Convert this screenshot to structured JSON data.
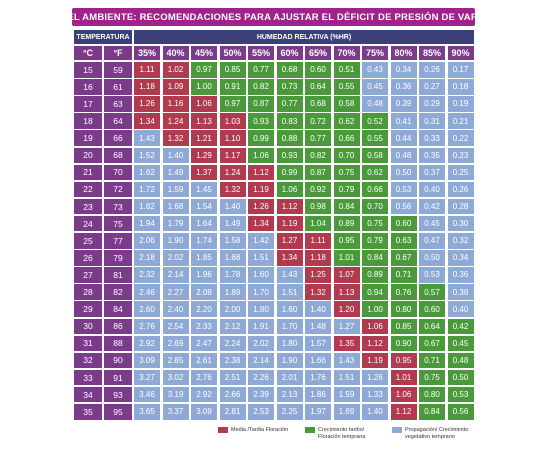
{
  "colors": {
    "title_bg": "#a1228b",
    "header_bg": "#3b3f7a",
    "label_bg": "#7b3a8a",
    "red": "#b03a4e",
    "green": "#4a9a3c",
    "blue": "#8fa9d7"
  },
  "title": "DPV EN EL AMBIENTE: RECOMENDACIONES PARA AJUSTAR EL DÉFICIT DE PRESIÓN DE VAPOR (kPa)",
  "header_temp": "TEMPERATURA",
  "header_humidity": "HUMEDAD RELATIVA (%HR)",
  "unit_c": "°C",
  "unit_f": "°F",
  "legend": [
    {
      "label": "Media /Tardia Floración",
      "color": "#b03a4e"
    },
    {
      "label": "Crecimiento tardio/\nFloración temprana",
      "color": "#4a9a3c"
    },
    {
      "label": "Propagación/ Crecimiento\nvegetativo temprano",
      "color": "#8fa9d7"
    }
  ],
  "chart_data": {
    "type": "table",
    "title": "DPV EN EL AMBIENTE: RECOMENDACIONES PARA AJUSTAR EL DÉFICIT DE PRESIÓN DE VAPOR (kPa)",
    "columns": [
      "35%",
      "40%",
      "45%",
      "50%",
      "55%",
      "60%",
      "65%",
      "70%",
      "75%",
      "80%",
      "85%",
      "90%"
    ],
    "rows": [
      {
        "c": "15",
        "f": "59",
        "values": [
          "1.11",
          "1.02",
          "0.97",
          "0.85",
          "0.77",
          "0.68",
          "0.60",
          "0.51",
          "0.43",
          "0.34",
          "0.26",
          "0.17"
        ],
        "zones": [
          "r",
          "r",
          "g",
          "g",
          "g",
          "g",
          "g",
          "g",
          "b",
          "b",
          "b",
          "b"
        ]
      },
      {
        "c": "16",
        "f": "61",
        "values": [
          "1.18",
          "1.09",
          "1.00",
          "0.91",
          "0.82",
          "0.73",
          "0.64",
          "0.55",
          "0.45",
          "0.36",
          "0.27",
          "0.18"
        ],
        "zones": [
          "r",
          "r",
          "g",
          "g",
          "g",
          "g",
          "g",
          "g",
          "b",
          "b",
          "b",
          "b"
        ]
      },
      {
        "c": "17",
        "f": "63",
        "values": [
          "1.26",
          "1.16",
          "1.06",
          "0.97",
          "0.87",
          "0.77",
          "0.68",
          "0.58",
          "0.48",
          "0.39",
          "0.29",
          "0.19"
        ],
        "zones": [
          "r",
          "r",
          "r",
          "g",
          "g",
          "g",
          "g",
          "g",
          "b",
          "b",
          "b",
          "b"
        ]
      },
      {
        "c": "18",
        "f": "64",
        "values": [
          "1.34",
          "1.24",
          "1.13",
          "1.03",
          "0.93",
          "0.83",
          "0.72",
          "0.62",
          "0.52",
          "0.41",
          "0.31",
          "0.21"
        ],
        "zones": [
          "r",
          "r",
          "r",
          "r",
          "g",
          "g",
          "g",
          "g",
          "g",
          "b",
          "b",
          "b"
        ]
      },
      {
        "c": "19",
        "f": "66",
        "values": [
          "1.43",
          "1.32",
          "1.21",
          "1.10",
          "0.99",
          "0.88",
          "0.77",
          "0.66",
          "0.55",
          "0.44",
          "0.33",
          "0.22"
        ],
        "zones": [
          "b",
          "r",
          "r",
          "r",
          "g",
          "g",
          "g",
          "g",
          "g",
          "b",
          "b",
          "b"
        ]
      },
      {
        "c": "20",
        "f": "68",
        "values": [
          "1.52",
          "1.40",
          "1.29",
          "1.17",
          "1.06",
          "0.93",
          "0.82",
          "0.70",
          "0.58",
          "0.48",
          "0.35",
          "0.23"
        ],
        "zones": [
          "b",
          "b",
          "r",
          "r",
          "g",
          "g",
          "g",
          "g",
          "g",
          "b",
          "b",
          "b"
        ]
      },
      {
        "c": "21",
        "f": "70",
        "values": [
          "1.62",
          "1.49",
          "1.37",
          "1.24",
          "1.12",
          "0.99",
          "0.87",
          "0.75",
          "0.62",
          "0.50",
          "0.37",
          "0.25"
        ],
        "zones": [
          "b",
          "b",
          "r",
          "r",
          "r",
          "g",
          "g",
          "g",
          "g",
          "b",
          "b",
          "b"
        ]
      },
      {
        "c": "22",
        "f": "72",
        "values": [
          "1.72",
          "1.59",
          "1.45",
          "1.32",
          "1.19",
          "1.06",
          "0.92",
          "0.79",
          "0.66",
          "0.53",
          "0.40",
          "0.26"
        ],
        "zones": [
          "b",
          "b",
          "b",
          "r",
          "r",
          "g",
          "g",
          "g",
          "g",
          "b",
          "b",
          "b"
        ]
      },
      {
        "c": "23",
        "f": "73",
        "values": [
          "1.82",
          "1.68",
          "1.54",
          "1.40",
          "1.26",
          "1.12",
          "0.98",
          "0.84",
          "0.70",
          "0.56",
          "0.42",
          "0.28"
        ],
        "zones": [
          "b",
          "b",
          "b",
          "b",
          "r",
          "r",
          "g",
          "g",
          "g",
          "b",
          "b",
          "b"
        ]
      },
      {
        "c": "24",
        "f": "75",
        "values": [
          "1.94",
          "1.79",
          "1.64",
          "1.49",
          "1.34",
          "1.19",
          "1.04",
          "0.89",
          "0.75",
          "0.60",
          "0.45",
          "0.30"
        ],
        "zones": [
          "b",
          "b",
          "b",
          "b",
          "r",
          "r",
          "g",
          "g",
          "g",
          "g",
          "b",
          "b"
        ]
      },
      {
        "c": "25",
        "f": "77",
        "values": [
          "2.06",
          "1.90",
          "1.74",
          "1.58",
          "1.42",
          "1.27",
          "1.11",
          "0.95",
          "0.79",
          "0.63",
          "0.47",
          "0.32"
        ],
        "zones": [
          "b",
          "b",
          "b",
          "b",
          "b",
          "r",
          "r",
          "g",
          "g",
          "g",
          "b",
          "b"
        ]
      },
      {
        "c": "26",
        "f": "79",
        "values": [
          "2.18",
          "2.02",
          "1.85",
          "1.68",
          "1.51",
          "1.34",
          "1.18",
          "1.01",
          "0.84",
          "0.67",
          "0.50",
          "0.34"
        ],
        "zones": [
          "b",
          "b",
          "b",
          "b",
          "b",
          "r",
          "r",
          "g",
          "g",
          "g",
          "b",
          "b"
        ]
      },
      {
        "c": "27",
        "f": "81",
        "values": [
          "2.32",
          "2.14",
          "1.96",
          "1.78",
          "1.60",
          "1.43",
          "1.25",
          "1.07",
          "0.89",
          "0.71",
          "0.53",
          "0.36"
        ],
        "zones": [
          "b",
          "b",
          "b",
          "b",
          "b",
          "b",
          "r",
          "r",
          "g",
          "g",
          "b",
          "b"
        ]
      },
      {
        "c": "28",
        "f": "82",
        "values": [
          "2.46",
          "2.27",
          "2.08",
          "1.89",
          "1.70",
          "1.51",
          "1.32",
          "1.13",
          "0.94",
          "0.76",
          "0.57",
          "0.38"
        ],
        "zones": [
          "b",
          "b",
          "b",
          "b",
          "b",
          "b",
          "r",
          "r",
          "g",
          "g",
          "g",
          "b"
        ]
      },
      {
        "c": "29",
        "f": "84",
        "values": [
          "2.60",
          "2.40",
          "2.20",
          "2.00",
          "1.80",
          "1.60",
          "1.40",
          "1.20",
          "1.00",
          "0.80",
          "0.60",
          "0.40"
        ],
        "zones": [
          "b",
          "b",
          "b",
          "b",
          "b",
          "b",
          "b",
          "r",
          "g",
          "g",
          "g",
          "b"
        ]
      },
      {
        "c": "30",
        "f": "86",
        "values": [
          "2.76",
          "2.54",
          "2.33",
          "2.12",
          "1.91",
          "1.70",
          "1.48",
          "1.27",
          "1.06",
          "0.85",
          "0.64",
          "0.42"
        ],
        "zones": [
          "b",
          "b",
          "b",
          "b",
          "b",
          "b",
          "b",
          "b",
          "r",
          "g",
          "g",
          "g"
        ]
      },
      {
        "c": "31",
        "f": "88",
        "values": [
          "2.92",
          "2.69",
          "2.47",
          "2.24",
          "2.02",
          "1.80",
          "1.57",
          "1.35",
          "1.12",
          "0.90",
          "0.67",
          "0.45"
        ],
        "zones": [
          "b",
          "b",
          "b",
          "b",
          "b",
          "b",
          "b",
          "r",
          "r",
          "g",
          "g",
          "g"
        ]
      },
      {
        "c": "32",
        "f": "90",
        "values": [
          "3.09",
          "2.85",
          "2.61",
          "2.38",
          "2.14",
          "1.90",
          "1.66",
          "1.43",
          "1.19",
          "0.95",
          "0.71",
          "0.48"
        ],
        "zones": [
          "b",
          "b",
          "b",
          "b",
          "b",
          "b",
          "b",
          "b",
          "r",
          "r",
          "g",
          "g"
        ]
      },
      {
        "c": "33",
        "f": "91",
        "values": [
          "3.27",
          "3.02",
          "2.76",
          "2.51",
          "2.26",
          "2.01",
          "1.76",
          "1.51",
          "1.26",
          "1.01",
          "0.75",
          "0.50"
        ],
        "zones": [
          "b",
          "b",
          "b",
          "b",
          "b",
          "b",
          "b",
          "b",
          "b",
          "r",
          "g",
          "g"
        ]
      },
      {
        "c": "34",
        "f": "93",
        "values": [
          "3.46",
          "3.19",
          "2.92",
          "2.66",
          "2.39",
          "2.13",
          "1.86",
          "1.59",
          "1.33",
          "1.06",
          "0.80",
          "0.53"
        ],
        "zones": [
          "b",
          "b",
          "b",
          "b",
          "b",
          "b",
          "b",
          "b",
          "b",
          "r",
          "g",
          "g"
        ]
      },
      {
        "c": "35",
        "f": "95",
        "values": [
          "3.65",
          "3.37",
          "3.09",
          "2.81",
          "2.53",
          "2.25",
          "1.97",
          "1.69",
          "1.40",
          "1.12",
          "0.84",
          "0.56"
        ],
        "zones": [
          "b",
          "b",
          "b",
          "b",
          "b",
          "b",
          "b",
          "b",
          "b",
          "r",
          "g",
          "g"
        ]
      }
    ]
  }
}
